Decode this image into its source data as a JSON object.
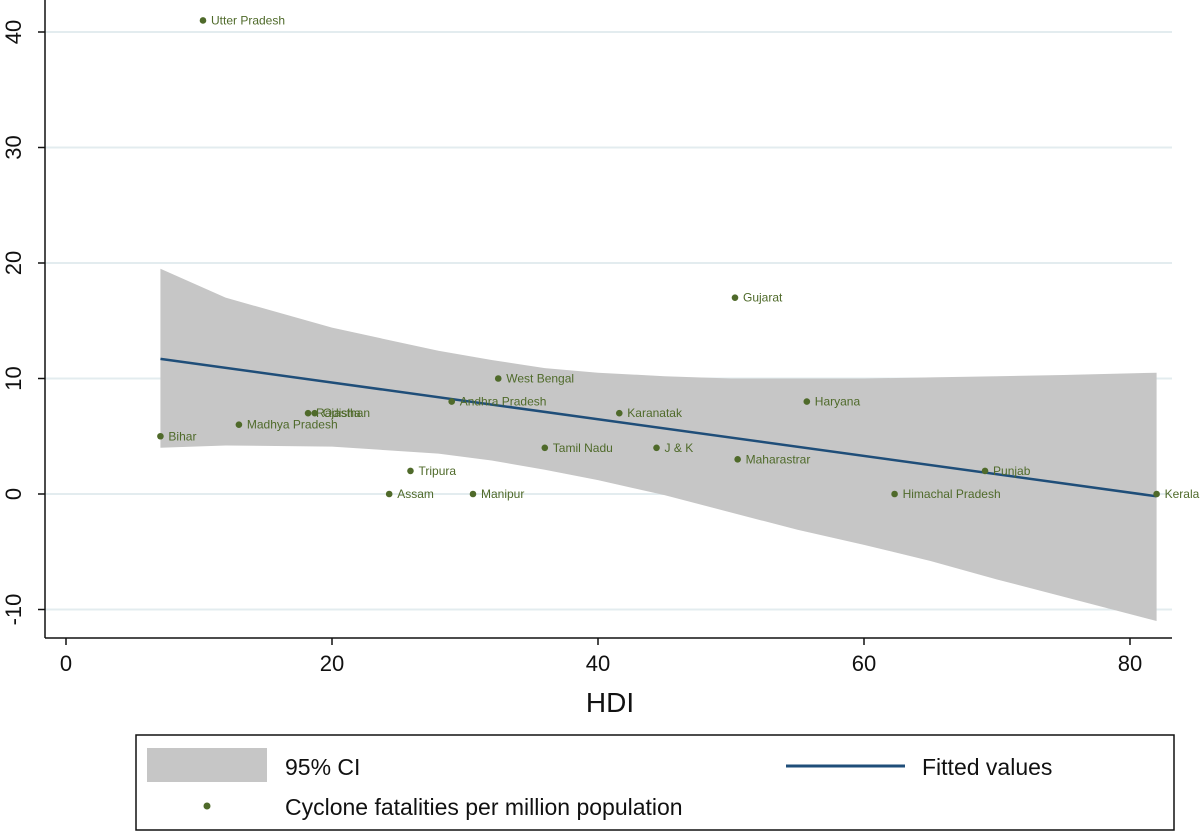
{
  "chart_data": {
    "type": "scatter",
    "title": "",
    "xlabel": "HDI",
    "ylabel": "",
    "xlim": [
      0,
      82
    ],
    "ylim": [
      -12,
      41
    ],
    "x_ticks": [
      0,
      20,
      40,
      60,
      80
    ],
    "y_ticks": [
      -10,
      0,
      10,
      20,
      30,
      40
    ],
    "grid": "horizontal",
    "colors": {
      "points": "#4f6a2a",
      "fit_line": "#1f4e79",
      "ci_band": "#c6c6c6",
      "grid": "#e3ecef",
      "axis": "#111111"
    },
    "points": [
      {
        "label": "Utter Pradesh",
        "x": 10.3,
        "y": 41
      },
      {
        "label": "Gujarat",
        "x": 50.3,
        "y": 17
      },
      {
        "label": "West Bengal",
        "x": 32.5,
        "y": 10
      },
      {
        "label": "Andhra Pradesh",
        "x": 29.0,
        "y": 8
      },
      {
        "label": "Haryana",
        "x": 55.7,
        "y": 8
      },
      {
        "label": "Rajasthan",
        "x": 18.2,
        "y": 7
      },
      {
        "label": "Odisha",
        "x": 18.7,
        "y": 7
      },
      {
        "label": "Karanatak",
        "x": 41.6,
        "y": 7
      },
      {
        "label": "Madhya Pradesh",
        "x": 13.0,
        "y": 6
      },
      {
        "label": "Bihar",
        "x": 7.1,
        "y": 5
      },
      {
        "label": "Tamil Nadu",
        "x": 36.0,
        "y": 4
      },
      {
        "label": "J & K",
        "x": 44.4,
        "y": 4
      },
      {
        "label": "Maharastrar",
        "x": 50.5,
        "y": 3
      },
      {
        "label": "Tripura",
        "x": 25.9,
        "y": 2
      },
      {
        "label": "Punjab",
        "x": 69.1,
        "y": 2
      },
      {
        "label": "Assam",
        "x": 24.3,
        "y": 0
      },
      {
        "label": "Manipur",
        "x": 30.6,
        "y": 0
      },
      {
        "label": "Himachal Pradesh",
        "x": 62.3,
        "y": 0
      },
      {
        "label": "Kerala",
        "x": 82.0,
        "y": 0
      }
    ],
    "fitted_line": {
      "x": [
        7.1,
        82.0
      ],
      "y": [
        11.7,
        -0.2
      ]
    },
    "ci_band": {
      "x": [
        7.1,
        12,
        20,
        28,
        32,
        36,
        40,
        45,
        50,
        55,
        60,
        65,
        70,
        75,
        82
      ],
      "upper": [
        19.5,
        17.0,
        14.4,
        12.4,
        11.6,
        10.9,
        10.5,
        10.2,
        10.0,
        10.0,
        10.0,
        10.1,
        10.2,
        10.3,
        10.5
      ],
      "lower": [
        4.0,
        4.2,
        4.1,
        3.5,
        2.9,
        2.1,
        1.2,
        -0.1,
        -1.6,
        -3.1,
        -4.4,
        -5.8,
        -7.4,
        -8.9,
        -11.0
      ]
    },
    "legend": {
      "placement": "bottom",
      "entries": [
        {
          "key": "ci",
          "label": "95% CI"
        },
        {
          "key": "fit",
          "label": "Fitted values"
        },
        {
          "key": "points",
          "label": "Cyclone fatalities per million population"
        }
      ]
    }
  }
}
